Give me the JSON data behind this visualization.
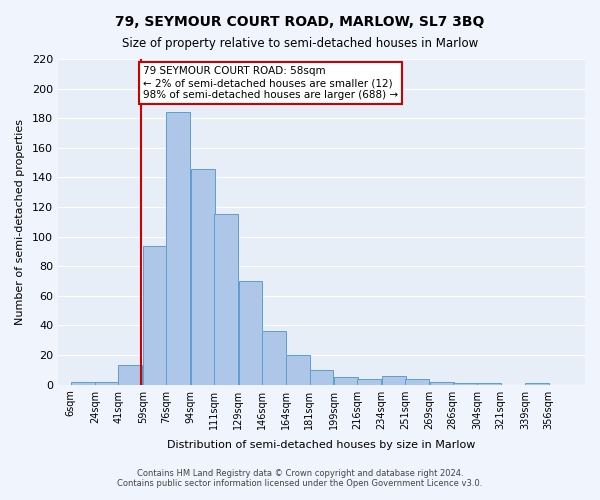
{
  "title": "79, SEYMOUR COURT ROAD, MARLOW, SL7 3BQ",
  "subtitle": "Size of property relative to semi-detached houses in Marlow",
  "xlabel": "Distribution of semi-detached houses by size in Marlow",
  "ylabel": "Number of semi-detached properties",
  "bin_labels": [
    "6sqm",
    "24sqm",
    "41sqm",
    "59sqm",
    "76sqm",
    "94sqm",
    "111sqm",
    "129sqm",
    "146sqm",
    "164sqm",
    "181sqm",
    "199sqm",
    "216sqm",
    "234sqm",
    "251sqm",
    "269sqm",
    "286sqm",
    "304sqm",
    "321sqm",
    "339sqm",
    "356sqm"
  ],
  "bin_edges": [
    6,
    24,
    41,
    59,
    76,
    94,
    111,
    129,
    146,
    164,
    181,
    199,
    216,
    234,
    251,
    269,
    286,
    304,
    321,
    339,
    356
  ],
  "bar_heights": [
    2,
    2,
    13,
    94,
    184,
    146,
    115,
    70,
    36,
    20,
    10,
    5,
    4,
    6,
    4,
    2,
    1,
    1,
    0,
    1
  ],
  "bar_color": "#aec6e8",
  "bar_edge_color": "#5a9fd4",
  "property_size": 58,
  "vline_color": "#cc0000",
  "annotation_text": "79 SEYMOUR COURT ROAD: 58sqm\n← 2% of semi-detached houses are smaller (12)\n98% of semi-detached houses are larger (688) →",
  "annotation_box_color": "#ffffff",
  "annotation_box_edge_color": "#cc0000",
  "ylim": [
    0,
    220
  ],
  "yticks": [
    0,
    20,
    40,
    60,
    80,
    100,
    120,
    140,
    160,
    180,
    200,
    220
  ],
  "background_color": "#e8eef8",
  "footer_line1": "Contains HM Land Registry data © Crown copyright and database right 2024.",
  "footer_line2": "Contains public sector information licensed under the Open Government Licence v3.0."
}
